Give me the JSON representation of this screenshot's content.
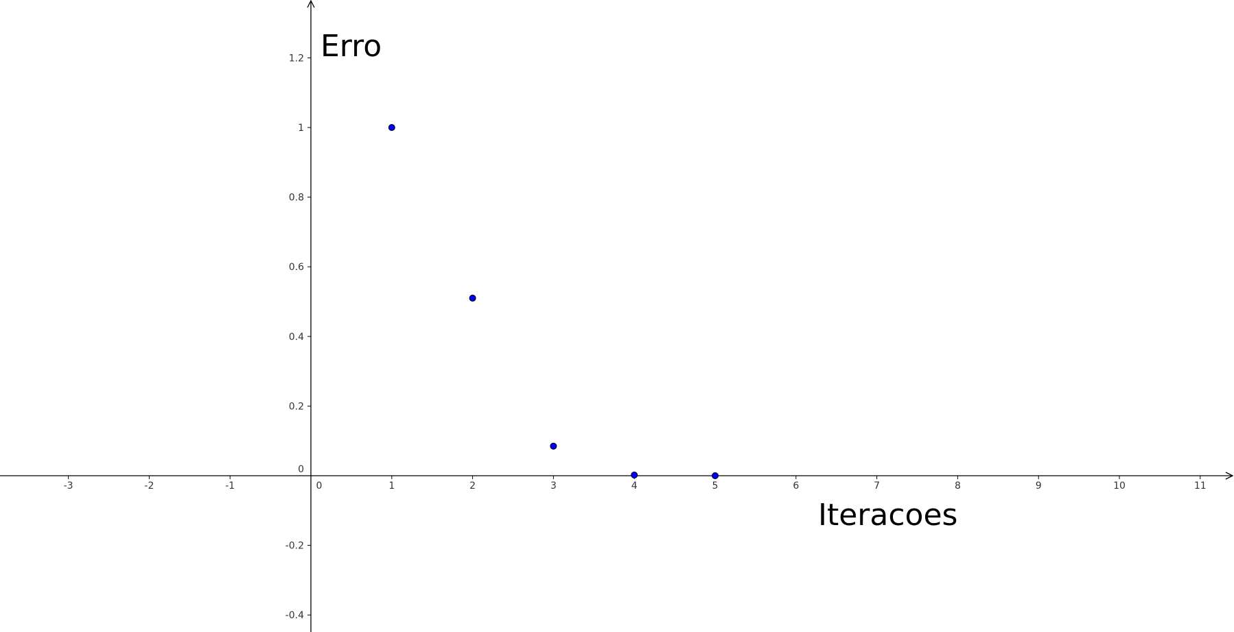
{
  "chart_data": {
    "type": "scatter",
    "title": "",
    "xlabel": "Iteracoes",
    "ylabel": "Erro",
    "xlim": [
      -3.9,
      11.4
    ],
    "ylim": [
      -0.45,
      1.37
    ],
    "x_ticks": [
      -3,
      -2,
      -1,
      0,
      1,
      2,
      3,
      4,
      5,
      6,
      7,
      8,
      9,
      10,
      11
    ],
    "y_ticks": [
      -0.4,
      -0.2,
      0,
      0.2,
      0.4,
      0.6,
      0.8,
      1,
      1.2
    ],
    "x_tick_labels": [
      "-3",
      "-2",
      "-1",
      "0",
      "1",
      "2",
      "3",
      "4",
      "5",
      "6",
      "7",
      "8",
      "9",
      "10",
      "11"
    ],
    "y_tick_labels": [
      "-0.4",
      "-0.2",
      "0",
      "0.2",
      "0.4",
      "0.6",
      "0.8",
      "1",
      "1.2"
    ],
    "grid": false,
    "legend": "none",
    "series": [
      {
        "color": "#0000ff",
        "stroke": "#000000",
        "points": [
          {
            "x": 1,
            "y": 1.0
          },
          {
            "x": 2,
            "y": 0.51
          },
          {
            "x": 3,
            "y": 0.085
          },
          {
            "x": 4,
            "y": 0.002
          },
          {
            "x": 5,
            "y": 0.0
          }
        ]
      }
    ]
  }
}
